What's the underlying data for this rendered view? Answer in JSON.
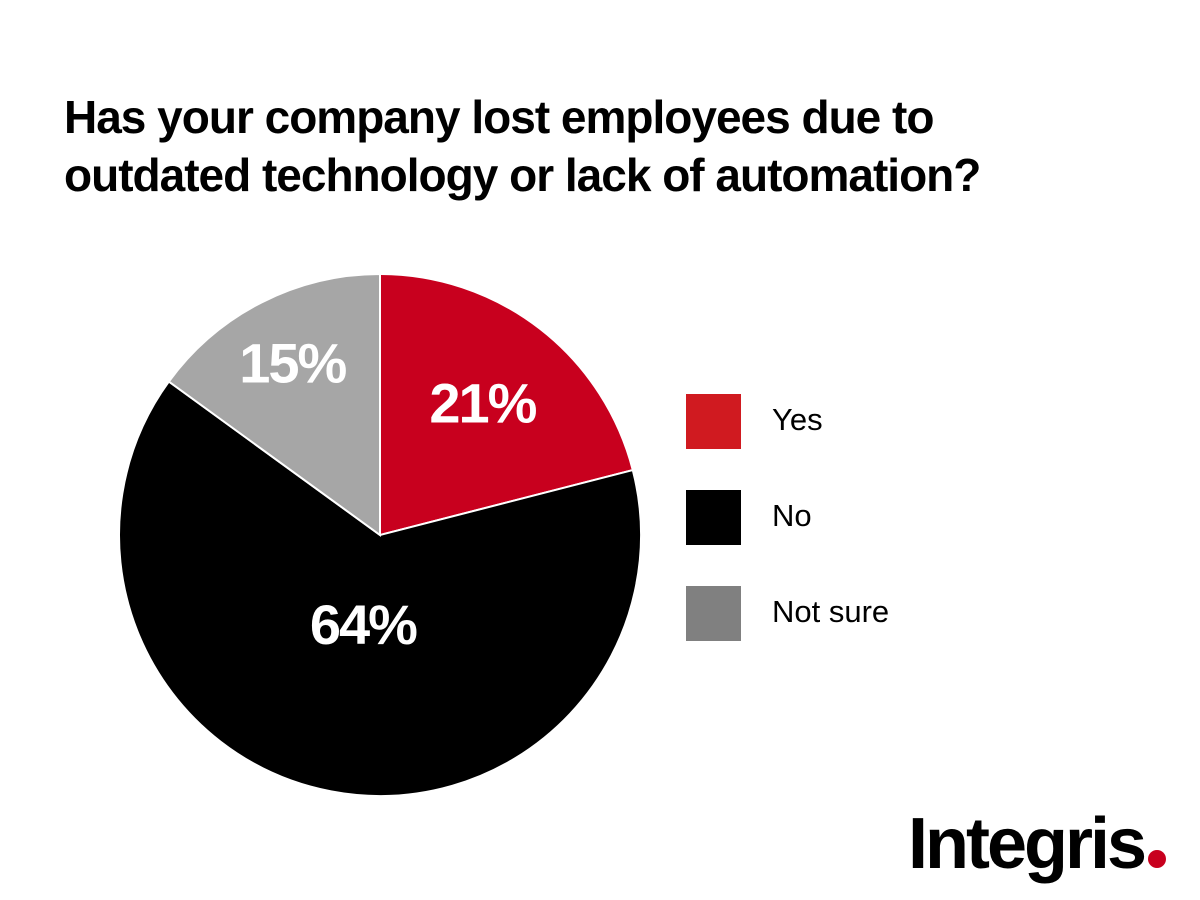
{
  "title": {
    "line1": "Has your company lost employees due to",
    "line2": "outdated technology or lack of automation?"
  },
  "chart_data": {
    "type": "pie",
    "title": "Has your company lost employees due to outdated technology or lack of automation?",
    "slices": [
      {
        "name": "Yes",
        "value": 21,
        "label": "21%",
        "color": "#c8001e"
      },
      {
        "name": "No",
        "value": 64,
        "label": "64%",
        "color": "#000000"
      },
      {
        "name": "Not sure",
        "value": 15,
        "label": "15%",
        "color": "#a6a6a6"
      }
    ],
    "legend": "right"
  },
  "legend": {
    "items": [
      {
        "label": "Yes",
        "color": "#d01a20"
      },
      {
        "label": "No",
        "color": "#000000"
      },
      {
        "label": "Not sure",
        "color": "#808080"
      }
    ]
  },
  "brand": {
    "name": "Integris",
    "dot_color": "#c8001e"
  }
}
